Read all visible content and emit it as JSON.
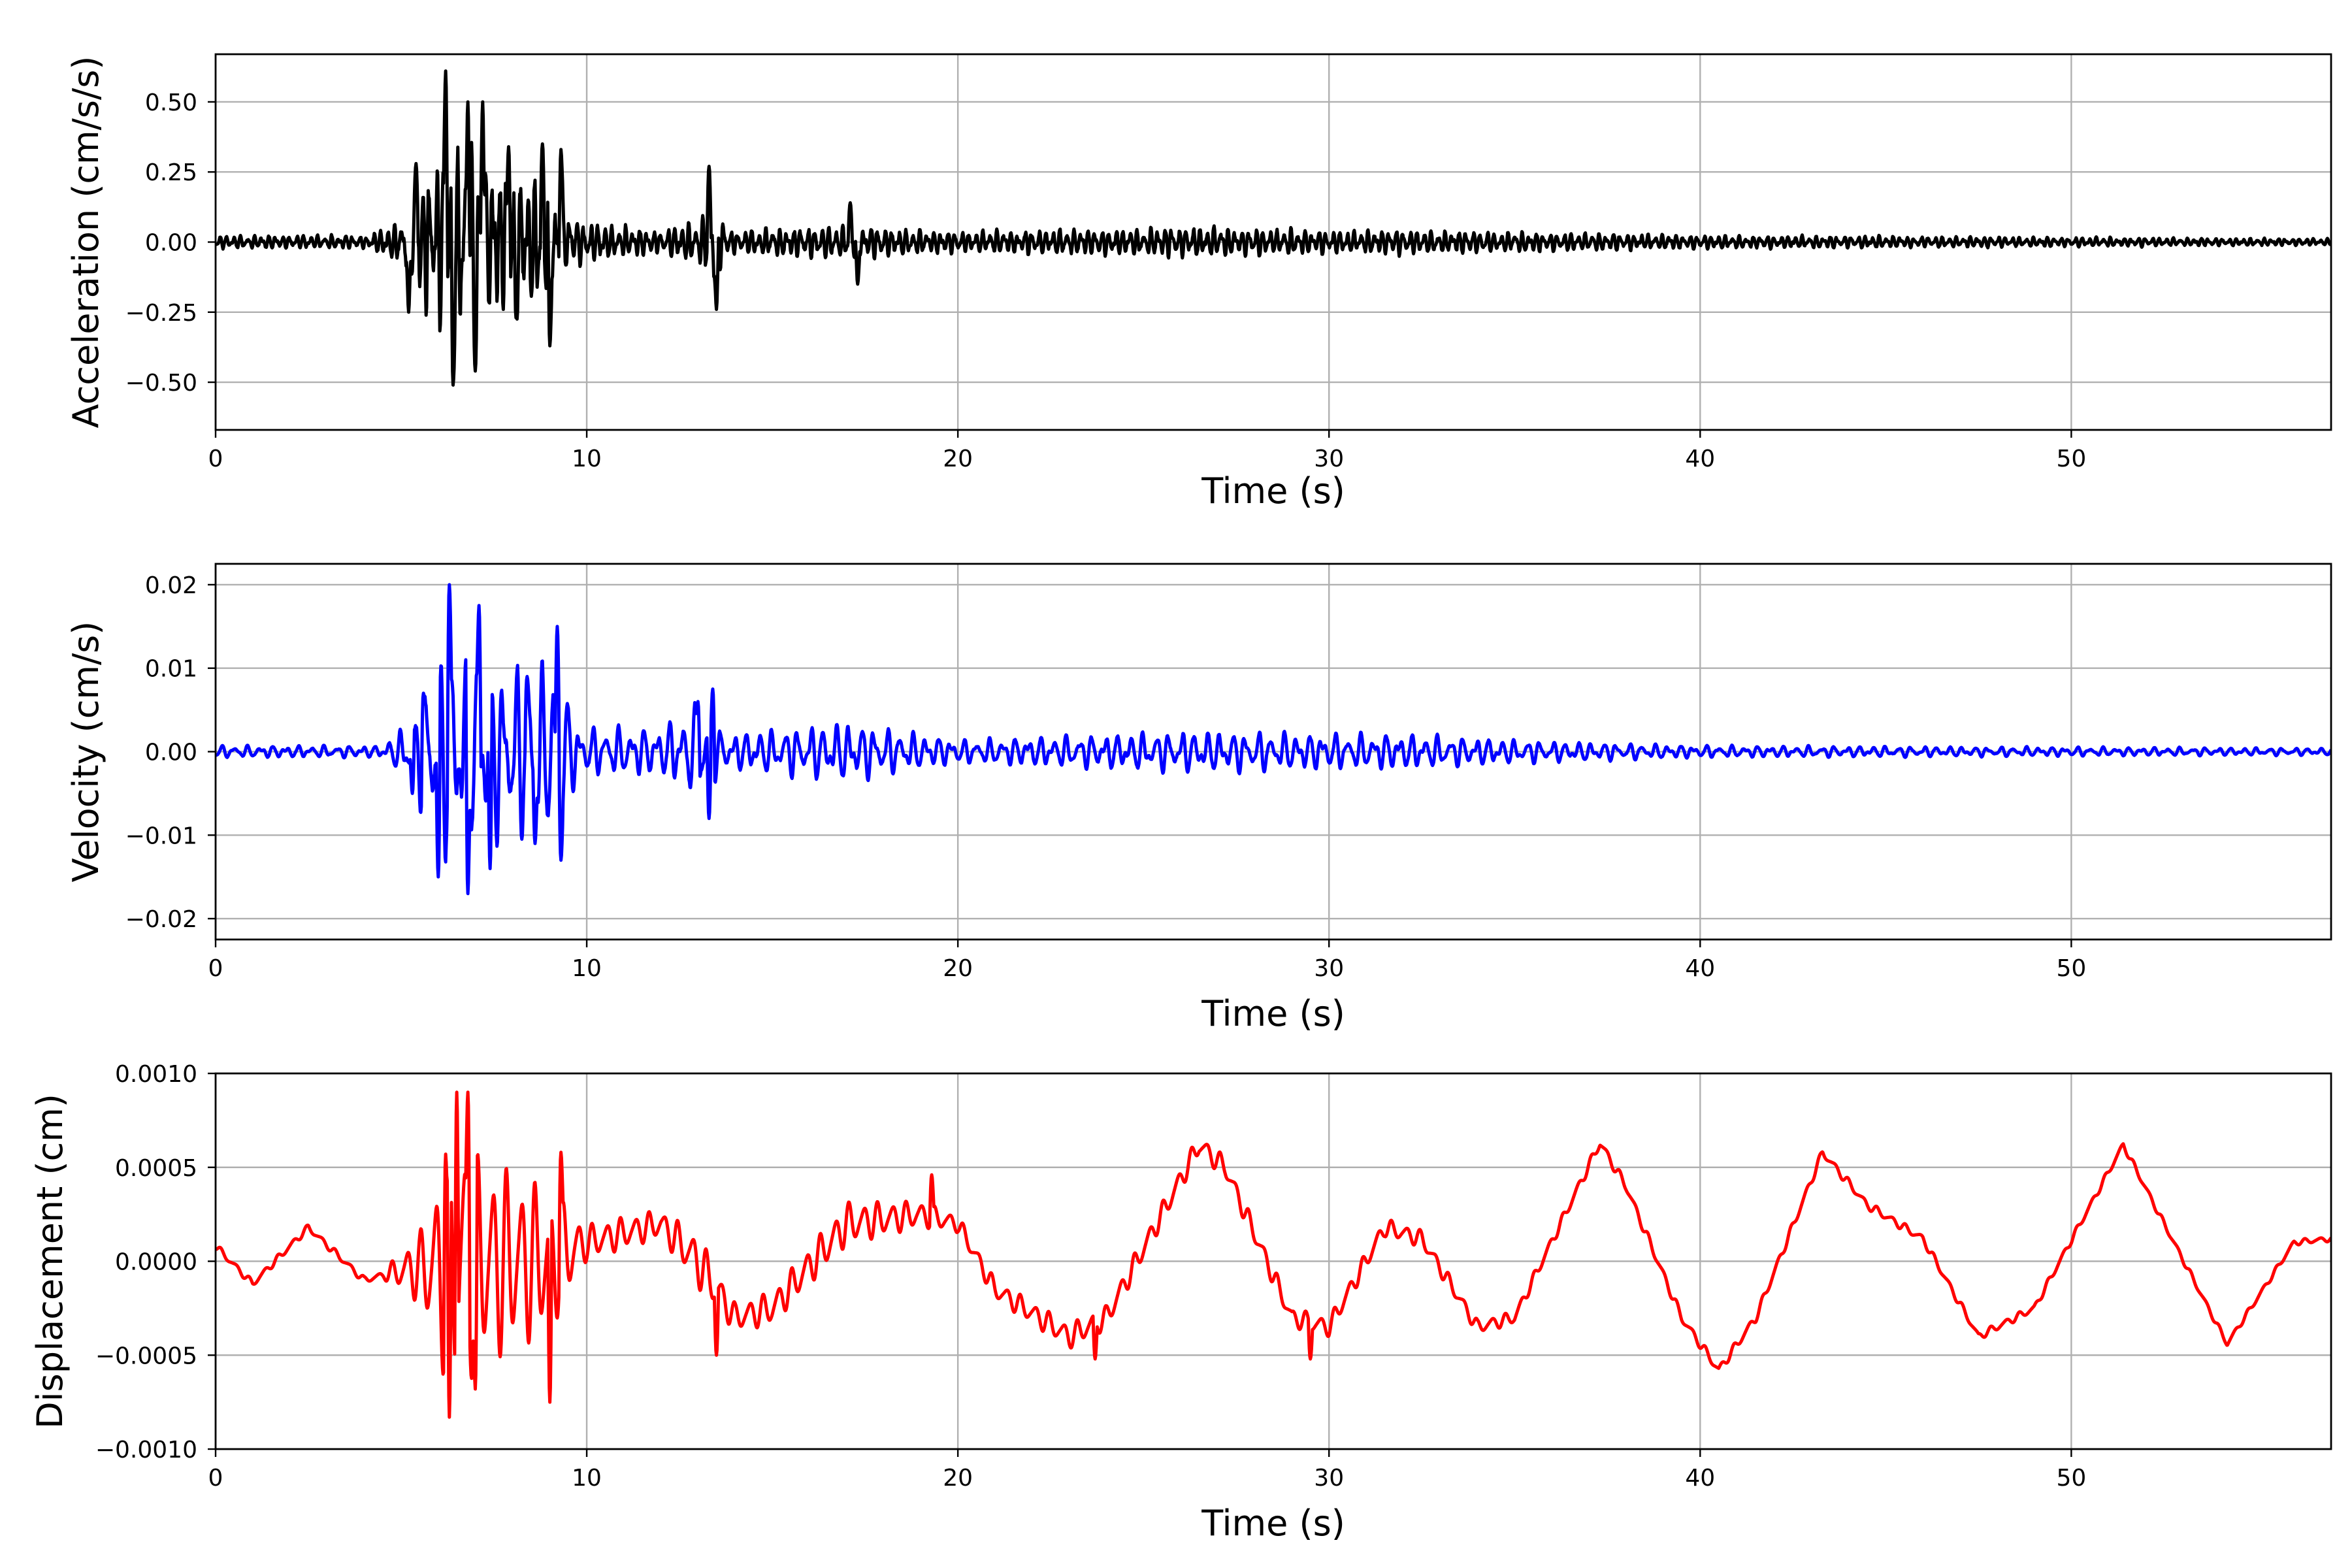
{
  "chart_data": [
    {
      "type": "line",
      "title": "",
      "xlabel": "Time (s)",
      "ylabel": "Acceleration (cm/s/s)",
      "xlim": [
        0,
        57
      ],
      "ylim": [
        -0.67,
        0.67
      ],
      "xticks": [
        0,
        10,
        20,
        30,
        40,
        50
      ],
      "xtick_labels": [
        "0",
        "10",
        "20",
        "30",
        "40",
        "50"
      ],
      "yticks": [
        -0.5,
        -0.25,
        0,
        0.25,
        0.5
      ],
      "ytick_labels": [
        "−0.50",
        "−0.25",
        "0.00",
        "0.25",
        "0.50"
      ],
      "grid": true,
      "series": [
        {
          "color": "#000000",
          "envelope": [
            [
              0,
              0.035
            ],
            [
              4,
              0.035
            ],
            [
              5.1,
              0.12
            ],
            [
              5.3,
              0.26
            ],
            [
              6.3,
              0.55
            ],
            [
              7,
              0.45
            ],
            [
              9,
              0.33
            ],
            [
              9.6,
              0.12
            ],
            [
              12,
              0.06
            ],
            [
              13,
              0.12
            ],
            [
              13.4,
              0.25
            ],
            [
              13.8,
              0.06
            ],
            [
              17,
              0.09
            ],
            [
              20,
              0.055
            ],
            [
              27,
              0.08
            ],
            [
              30,
              0.06
            ],
            [
              32,
              0.065
            ],
            [
              40,
              0.035
            ],
            [
              57,
              0.018
            ]
          ],
          "peaks": [
            [
              5.2,
              -0.25
            ],
            [
              5.4,
              0.28
            ],
            [
              6.2,
              0.61
            ],
            [
              6.4,
              -0.51
            ],
            [
              6.8,
              0.5
            ],
            [
              7.0,
              -0.46
            ],
            [
              7.2,
              0.5
            ],
            [
              7.9,
              0.34
            ],
            [
              8.1,
              -0.27
            ],
            [
              8.8,
              0.35
            ],
            [
              9.0,
              -0.37
            ],
            [
              9.3,
              0.33
            ],
            [
              13.3,
              0.27
            ],
            [
              13.5,
              -0.24
            ],
            [
              17.1,
              0.14
            ],
            [
              17.3,
              -0.15
            ]
          ]
        }
      ]
    },
    {
      "type": "line",
      "title": "",
      "xlabel": "Time (s)",
      "ylabel": "Velocity (cm/s)",
      "xlim": [
        0,
        57
      ],
      "ylim": [
        -0.0225,
        0.0225
      ],
      "xticks": [
        0,
        10,
        20,
        30,
        40,
        50
      ],
      "xtick_labels": [
        "0",
        "10",
        "20",
        "30",
        "40",
        "50"
      ],
      "yticks": [
        -0.02,
        -0.01,
        0,
        0.01,
        0.02
      ],
      "ytick_labels": [
        "−0.02",
        "−0.01",
        "0.00",
        "0.01",
        "0.02"
      ],
      "grid": true,
      "series": [
        {
          "color": "#0000ff",
          "envelope": [
            [
              0,
              0.001
            ],
            [
              4.5,
              0.001
            ],
            [
              5.2,
              0.005
            ],
            [
              6.2,
              0.018
            ],
            [
              7,
              0.015
            ],
            [
              9.2,
              0.014
            ],
            [
              9.8,
              0.004
            ],
            [
              12,
              0.004
            ],
            [
              13,
              0.008
            ],
            [
              13.7,
              0.003
            ],
            [
              17,
              0.005
            ],
            [
              20,
              0.002
            ],
            [
              26.5,
              0.0035
            ],
            [
              30,
              0.003
            ],
            [
              32,
              0.003
            ],
            [
              35,
              0.002
            ],
            [
              40,
              0.001
            ],
            [
              57,
              0.0006
            ]
          ],
          "peaks": [
            [
              5.3,
              -0.005
            ],
            [
              5.6,
              0.007
            ],
            [
              6.0,
              -0.015
            ],
            [
              6.3,
              0.02
            ],
            [
              6.8,
              -0.017
            ],
            [
              7.1,
              0.0175
            ],
            [
              7.4,
              -0.014
            ],
            [
              8.4,
              0.009
            ],
            [
              8.6,
              -0.011
            ],
            [
              9.2,
              0.015
            ],
            [
              9.3,
              -0.013
            ],
            [
              13.0,
              0.006
            ],
            [
              13.3,
              -0.008
            ],
            [
              13.4,
              0.0075
            ]
          ]
        }
      ]
    },
    {
      "type": "line",
      "title": "",
      "xlabel": "Time (s)",
      "ylabel": "Displacement (cm)",
      "xlim": [
        0,
        57
      ],
      "ylim": [
        -0.001,
        0.001
      ],
      "xticks": [
        0,
        10,
        20,
        30,
        40,
        50
      ],
      "xtick_labels": [
        "0",
        "10",
        "20",
        "30",
        "40",
        "50"
      ],
      "yticks": [
        -0.001,
        -0.0005,
        0,
        0.0005,
        0.001
      ],
      "ytick_labels": [
        "−0.0010",
        "−0.0005",
        "0.0000",
        "0.0005",
        "0.0010"
      ],
      "grid": true,
      "series": [
        {
          "color": "#ff0000",
          "baseline": [
            [
              0,
              8e-05
            ],
            [
              1,
              -0.00012
            ],
            [
              2.5,
              0.00018
            ],
            [
              4,
              -0.0001
            ],
            [
              5,
              -5e-05
            ],
            [
              7,
              0.0
            ],
            [
              9,
              0.0
            ],
            [
              10,
              0.0001
            ],
            [
              12,
              0.0002
            ],
            [
              13,
              0.0
            ],
            [
              14,
              -0.0003
            ],
            [
              15,
              -0.00025
            ],
            [
              17,
              0.0002
            ],
            [
              19,
              0.00025
            ],
            [
              20,
              0.0002
            ],
            [
              21,
              -0.00015
            ],
            [
              23,
              -0.0004
            ],
            [
              24,
              -0.0003
            ],
            [
              26.5,
              0.00062
            ],
            [
              27.2,
              0.0005
            ],
            [
              29,
              -0.0003
            ],
            [
              30,
              -0.00035
            ],
            [
              31.5,
              0.00018
            ],
            [
              32.5,
              0.00012
            ],
            [
              34,
              -0.00035
            ],
            [
              35,
              -0.0003
            ],
            [
              37.3,
              0.00063
            ],
            [
              38,
              0.0004
            ],
            [
              39.5,
              -0.0003
            ],
            [
              40.5,
              -0.00058
            ],
            [
              41.5,
              -0.0003
            ],
            [
              43.3,
              0.00058
            ],
            [
              44.5,
              0.0003
            ],
            [
              46,
              0.00012
            ],
            [
              47.5,
              -0.0004
            ],
            [
              49,
              -0.00025
            ],
            [
              51.4,
              0.00062
            ],
            [
              52.5,
              0.0002
            ],
            [
              54.2,
              -0.00044
            ],
            [
              56,
              0.0001
            ],
            [
              57,
              0.00012
            ]
          ],
          "osc": [
            [
              0,
              2e-05
            ],
            [
              4.5,
              2e-05
            ],
            [
              5.5,
              0.0002
            ],
            [
              6.5,
              0.00085
            ],
            [
              7,
              0.0006
            ],
            [
              9,
              0.0004
            ],
            [
              10,
              0.0001
            ],
            [
              12,
              8e-05
            ],
            [
              13,
              0.00015
            ],
            [
              14,
              8e-05
            ],
            [
              17,
              0.00012
            ],
            [
              20,
              5e-05
            ],
            [
              23,
              7e-05
            ],
            [
              27,
              6e-05
            ],
            [
              32,
              5e-05
            ],
            [
              36,
              3e-05
            ],
            [
              57,
              1.5e-05
            ]
          ],
          "peaks": [
            [
              6.2,
              0.00057
            ],
            [
              6.3,
              -0.00083
            ],
            [
              6.5,
              0.0009
            ],
            [
              6.8,
              0.0009
            ],
            [
              7.0,
              -0.00068
            ],
            [
              9.0,
              -0.00075
            ],
            [
              9.3,
              0.00058
            ],
            [
              13.5,
              -0.0005
            ],
            [
              19.3,
              0.00046
            ],
            [
              29.5,
              -0.00052
            ],
            [
              23.7,
              -0.00052
            ]
          ]
        }
      ]
    }
  ]
}
